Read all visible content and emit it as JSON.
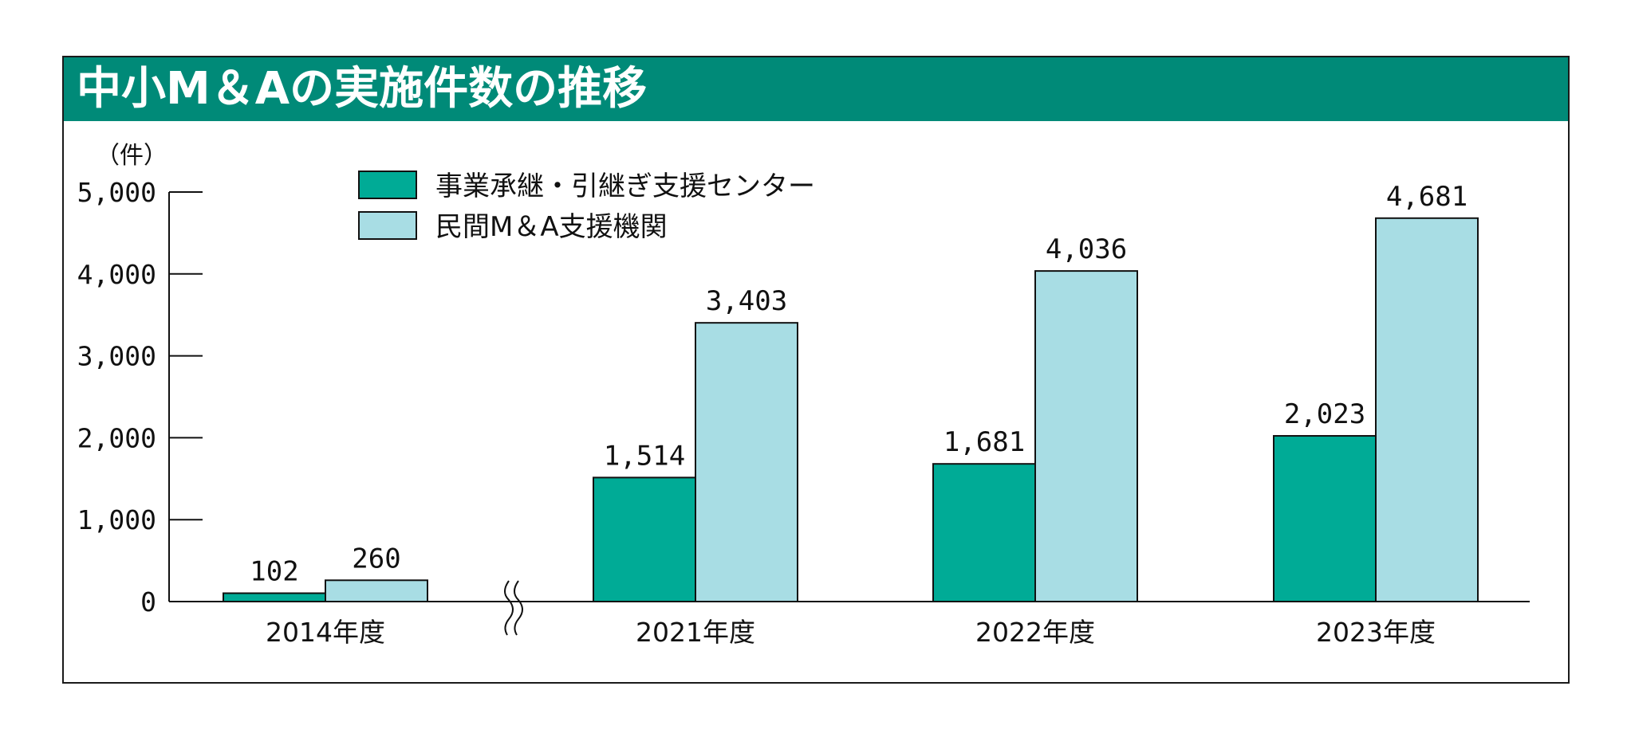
{
  "title": "中小M＆Aの実施件数の推移",
  "colors": {
    "header": "#008a78",
    "series1": "#00ab96",
    "series2": "#a8dde4",
    "border": "#1a1a1a"
  },
  "chart_data": {
    "type": "bar",
    "title": "中小M＆Aの実施件数の推移",
    "unit_label": "（件）",
    "xlabel": "",
    "ylabel": "（件）",
    "ylim": [
      0,
      5000
    ],
    "yticks": [
      0,
      1000,
      2000,
      3000,
      4000,
      5000
    ],
    "ytick_labels": [
      "0",
      "1,000",
      "2,000",
      "3,000",
      "4,000",
      "5,000"
    ],
    "categories": [
      "2014年度",
      "2021年度",
      "2022年度",
      "2023年度"
    ],
    "axis_break_after": "2014年度",
    "legend_position": "top-left",
    "series": [
      {
        "name": "事業承継・引継ぎ支援センター",
        "values": [
          102,
          1514,
          1681,
          2023
        ],
        "labels": [
          "102",
          "1,514",
          "1,681",
          "2,023"
        ]
      },
      {
        "name": "民間M＆A支援機関",
        "values": [
          260,
          3403,
          4036,
          4681
        ],
        "labels": [
          "260",
          "3,403",
          "4,036",
          "4,681"
        ]
      }
    ]
  }
}
